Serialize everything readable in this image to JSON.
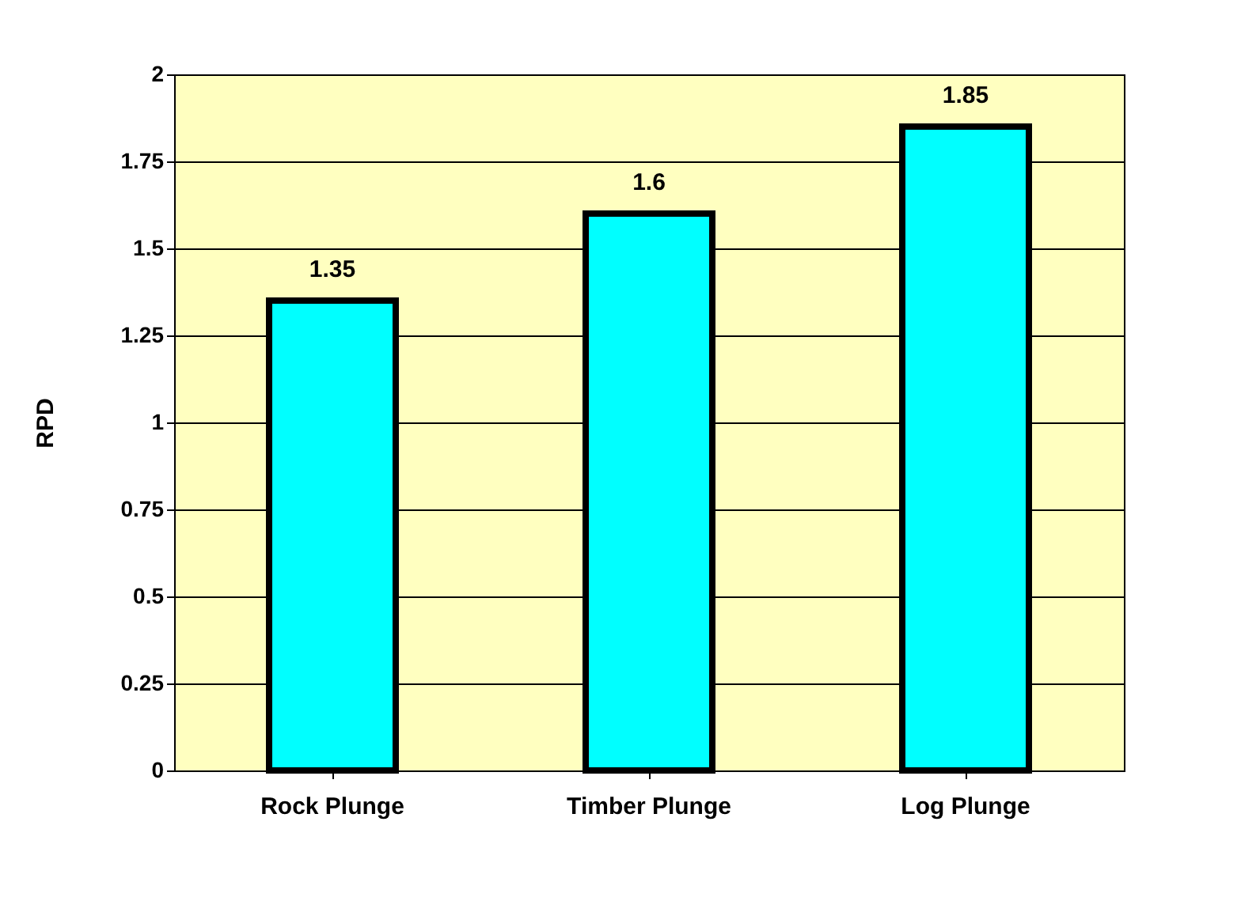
{
  "chart_data": {
    "type": "bar",
    "ylabel": "RPD",
    "categories": [
      "Rock Plunge",
      "Timber Plunge",
      "Log Plunge"
    ],
    "values": [
      1.35,
      1.6,
      1.85
    ],
    "color": "#00ffff",
    "ylim": [
      0,
      2
    ],
    "yticks": [
      0,
      0.25,
      0.5,
      0.75,
      1,
      1.25,
      1.5,
      1.75,
      2
    ],
    "grid": "y",
    "data_labels": true
  }
}
